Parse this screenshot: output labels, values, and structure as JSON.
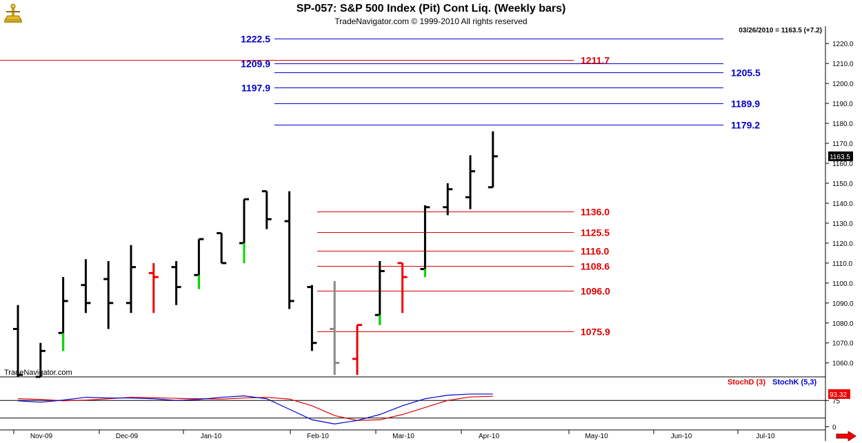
{
  "header": {
    "title": "SP-057:  S&P 500 Index (Pit) Cont Liq.  (Weekly bars)",
    "subtitle": "TradeNavigator.com © 1999-2010 All rights reserved",
    "last_info": "03/26/2010 = 1163.5 (+7.2)"
  },
  "watermark": "TradeNavigator.com",
  "chart_data": [
    {
      "type": "ohlc",
      "title": "SP-057:  S&P 500 Index (Pit) Cont Liq.  (Weekly bars)",
      "ylim": [
        1053,
        1228
      ],
      "y_ticks": [
        1060.0,
        1070.0,
        1080.0,
        1090.0,
        1100.0,
        1110.0,
        1120.0,
        1130.0,
        1140.0,
        1150.0,
        1160.0,
        1170.0,
        1180.0,
        1190.0,
        1200.0,
        1210.0,
        1220.0
      ],
      "x_tick_labels": [
        "Nov-09",
        "Dec-09",
        "Jan-10",
        "Feb-10",
        "Mar-10",
        "Apr-10",
        "May-10",
        "Jun-10",
        "Jul-10"
      ],
      "last_price_label": "1163.5",
      "bars": [
        {
          "o": 1077,
          "h": 1089,
          "l": 1053,
          "c": 1054,
          "color": "#000000"
        },
        {
          "o": 1053,
          "h": 1070,
          "l": 1053,
          "c": 1066,
          "color": "#000000"
        },
        {
          "o": 1075,
          "h": 1103,
          "l": 1066,
          "c": 1091,
          "color": "#000000",
          "tail": {
            "from": 1075,
            "to": 1066,
            "color": "#00dd00"
          }
        },
        {
          "o": 1099,
          "h": 1112,
          "l": 1085,
          "c": 1090,
          "color": "#000000"
        },
        {
          "o": 1102,
          "h": 1111,
          "l": 1077,
          "c": 1090,
          "color": "#000000"
        },
        {
          "o": 1090,
          "h": 1119,
          "l": 1085,
          "c": 1108,
          "color": "#000000"
        },
        {
          "o": 1105,
          "h": 1110,
          "l": 1085,
          "c": 1103,
          "color": "#ee0000"
        },
        {
          "o": 1108,
          "h": 1111,
          "l": 1089,
          "c": 1098,
          "color": "#000000"
        },
        {
          "o": 1104,
          "h": 1122,
          "l": 1097,
          "c": 1122,
          "color": "#000000",
          "tail": {
            "from": 1104,
            "to": 1097,
            "color": "#00dd00"
          }
        },
        {
          "o": 1125,
          "h": 1125,
          "l": 1110,
          "c": 1110,
          "color": "#000000"
        },
        {
          "o": 1120,
          "h": 1142,
          "l": 1110,
          "c": 1142,
          "color": "#000000",
          "tail": {
            "from": 1120,
            "to": 1110,
            "color": "#00dd00"
          }
        },
        {
          "o": 1146,
          "h": 1146,
          "l": 1127,
          "c": 1132,
          "color": "#000000"
        },
        {
          "o": 1131,
          "h": 1146,
          "l": 1087,
          "c": 1091,
          "color": "#000000"
        },
        {
          "o": 1098,
          "h": 1099,
          "l": 1066,
          "c": 1070,
          "color": "#000000"
        },
        {
          "o": 1077,
          "h": 1101,
          "l": 1054,
          "c": 1060,
          "color": "#888888"
        },
        {
          "o": 1062,
          "h": 1079,
          "l": 1054,
          "c": 1079,
          "color": "#ee0000"
        },
        {
          "o": 1084,
          "h": 1111,
          "l": 1079,
          "c": 1106,
          "color": "#000000",
          "tail": {
            "from": 1084,
            "to": 1079,
            "color": "#00dd00"
          }
        },
        {
          "o": 1110,
          "h": 1110,
          "l": 1085,
          "c": 1103,
          "color": "#ee0000"
        },
        {
          "o": 1107,
          "h": 1139,
          "l": 1103,
          "c": 1138,
          "color": "#000000",
          "tail": {
            "from": 1107,
            "to": 1103,
            "color": "#00dd00"
          }
        },
        {
          "o": 1138,
          "h": 1150,
          "l": 1134,
          "c": 1147,
          "color": "#000000"
        },
        {
          "o": 1143,
          "h": 1164,
          "l": 1137,
          "c": 1156,
          "color": "#000000"
        },
        {
          "o": 1148,
          "h": 1176,
          "l": 1148,
          "c": 1163.5,
          "color": "#000000"
        }
      ],
      "levels": [
        {
          "label": "1222.5",
          "value": 1222.5,
          "color": "#0000cc",
          "label_side": "left"
        },
        {
          "label": "1209.9",
          "value": 1209.9,
          "color": "#0000cc",
          "label_side": "left"
        },
        {
          "label": "1197.9",
          "value": 1197.9,
          "color": "#0000cc",
          "label_side": "left"
        },
        {
          "label": "1205.5",
          "value": 1205.5,
          "color": "#0000cc",
          "label_side": "right"
        },
        {
          "label": "1189.9",
          "value": 1189.9,
          "color": "#0000cc",
          "label_side": "right"
        },
        {
          "label": "1179.2",
          "value": 1179.2,
          "color": "#0000cc",
          "label_side": "right"
        },
        {
          "label": "1211.7",
          "value": 1211.7,
          "color": "#dd0000",
          "label_side": "right"
        },
        {
          "label": "1136.0",
          "value": 1136.0,
          "color": "#dd0000",
          "label_side": "right"
        },
        {
          "label": "1125.5",
          "value": 1125.5,
          "color": "#dd0000",
          "label_side": "right"
        },
        {
          "label": "1116.0",
          "value": 1116.0,
          "color": "#dd0000",
          "label_side": "right"
        },
        {
          "label": "1108.6",
          "value": 1108.6,
          "color": "#dd0000",
          "label_side": "right"
        },
        {
          "label": "1096.0",
          "value": 1096.0,
          "color": "#dd0000",
          "label_side": "right"
        },
        {
          "label": "1075.9",
          "value": 1075.9,
          "color": "#dd0000",
          "label_side": "right"
        }
      ]
    },
    {
      "type": "line",
      "ylim": [
        -5,
        105
      ],
      "y_ticks": [
        75,
        0
      ],
      "series": [
        {
          "name": "StochD (3)",
          "color": "#dd0000",
          "values": [
            80,
            78,
            74,
            76,
            80,
            84,
            83,
            81,
            80,
            79,
            82,
            84,
            79,
            60,
            32,
            18,
            20,
            35,
            55,
            75,
            85,
            87
          ]
        },
        {
          "name": "StochK (5,3)",
          "color": "#0000cc",
          "values": [
            74,
            70,
            76,
            84,
            82,
            82,
            80,
            75,
            78,
            84,
            88,
            80,
            50,
            20,
            8,
            18,
            35,
            60,
            80,
            90,
            93.32,
            93.32
          ]
        }
      ],
      "last_value_label": "93.32"
    }
  ]
}
